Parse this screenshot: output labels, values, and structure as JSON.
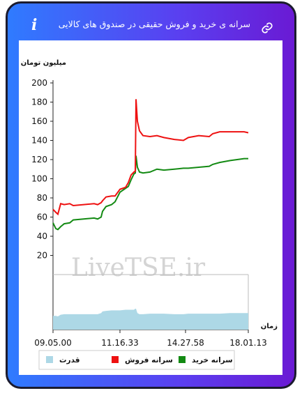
{
  "chart_data": {
    "type": "line",
    "title": "سرانه ی خرید و فروش حقیقی در صندوق های کالایی",
    "ylabel": "میلیون تومان",
    "xlabel": "زمان",
    "watermark": "LiveTSE.ir",
    "x": [
      0,
      4,
      7,
      11,
      16,
      24,
      29,
      44,
      59,
      64,
      69,
      71,
      76,
      84,
      89,
      96,
      104,
      108,
      112,
      116,
      118,
      119,
      121,
      124,
      129,
      139,
      149,
      159,
      174,
      187,
      194,
      209,
      224,
      229,
      239,
      254,
      274,
      280
    ],
    "xlim": [
      0,
      280
    ],
    "xticks": [
      {
        "value": 0,
        "label": "09.05.00"
      },
      {
        "value": 96,
        "label": "11.16.33"
      },
      {
        "value": 190,
        "label": "14.27.58"
      },
      {
        "value": 280,
        "label": "18.01.13"
      }
    ],
    "ylim": [
      0,
      200
    ],
    "yticks": [
      20,
      40,
      60,
      80,
      100,
      120,
      140,
      160,
      180,
      200
    ],
    "y2lim": [
      0,
      100
    ],
    "series": [
      {
        "name": "سرانه خرید",
        "color": "#138a13",
        "values": [
          54,
          48,
          47,
          50,
          53,
          54,
          57,
          58,
          59,
          58,
          60,
          66,
          71,
          73,
          76,
          86,
          90,
          92,
          99,
          105,
          106,
          124,
          112,
          107,
          106,
          107,
          110,
          109,
          110,
          111,
          111,
          112,
          113,
          115,
          117,
          119,
          121,
          121
        ]
      },
      {
        "name": "سرانه فروش",
        "color": "#ee1111",
        "values": [
          68,
          65,
          63,
          74,
          73,
          74,
          72,
          73,
          74,
          73,
          75,
          77,
          81,
          82,
          82,
          89,
          91,
          96,
          104,
          107,
          108,
          183,
          160,
          150,
          145,
          144,
          145,
          143,
          141,
          140,
          143,
          145,
          144,
          147,
          149,
          149,
          149,
          148
        ]
      },
      {
        "name": "قدرت",
        "color": "#add8e6",
        "axis": "y2",
        "type": "area",
        "values": [
          25,
          25,
          24,
          27,
          28,
          28,
          28,
          28,
          28,
          28,
          30,
          33,
          34,
          35,
          35,
          35,
          36,
          36,
          36,
          36,
          38,
          38,
          30,
          28,
          28,
          29,
          29,
          29,
          28,
          28,
          29,
          29,
          29,
          29,
          29,
          30,
          30,
          30
        ]
      }
    ]
  }
}
